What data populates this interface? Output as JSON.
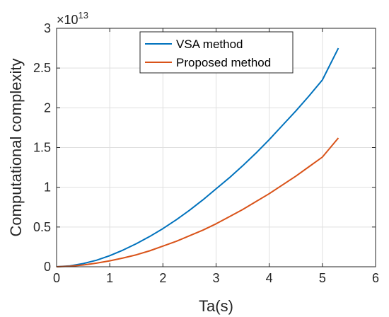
{
  "chart_data": {
    "type": "line",
    "title": "",
    "xlabel": "Ta(s)",
    "ylabel": "Computational complexity",
    "y_scale_factor": {
      "base": "×10",
      "exponent": "13"
    },
    "xlim": [
      0,
      6
    ],
    "ylim": [
      0,
      3
    ],
    "xticks": [
      "0",
      "1",
      "2",
      "3",
      "4",
      "5",
      "6"
    ],
    "yticks": [
      "0",
      "0.5",
      "1",
      "1.5",
      "2",
      "2.5",
      "3"
    ],
    "grid": true,
    "legend_position": "top-center",
    "series": [
      {
        "name": "VSA method",
        "color": "#0072BD",
        "x": [
          0,
          0.25,
          0.5,
          0.75,
          1.0,
          1.25,
          1.5,
          1.75,
          2.0,
          2.25,
          2.5,
          2.75,
          3.0,
          3.25,
          3.5,
          3.75,
          4.0,
          4.25,
          4.5,
          4.75,
          5.0,
          5.3
        ],
        "y": [
          0,
          0.012,
          0.04,
          0.082,
          0.14,
          0.21,
          0.29,
          0.38,
          0.48,
          0.59,
          0.71,
          0.84,
          0.98,
          1.12,
          1.27,
          1.43,
          1.6,
          1.78,
          1.96,
          2.15,
          2.35,
          2.75
        ]
      },
      {
        "name": "Proposed method",
        "color": "#D95319",
        "x": [
          0,
          0.25,
          0.5,
          0.75,
          1.0,
          1.25,
          1.5,
          1.75,
          2.0,
          2.25,
          2.5,
          2.75,
          3.0,
          3.25,
          3.5,
          3.75,
          4.0,
          4.25,
          4.5,
          4.75,
          5.0,
          5.3
        ],
        "y": [
          0,
          0.007,
          0.022,
          0.045,
          0.075,
          0.11,
          0.15,
          0.2,
          0.26,
          0.32,
          0.39,
          0.46,
          0.54,
          0.63,
          0.72,
          0.82,
          0.92,
          1.03,
          1.14,
          1.26,
          1.38,
          1.62
        ]
      }
    ]
  }
}
